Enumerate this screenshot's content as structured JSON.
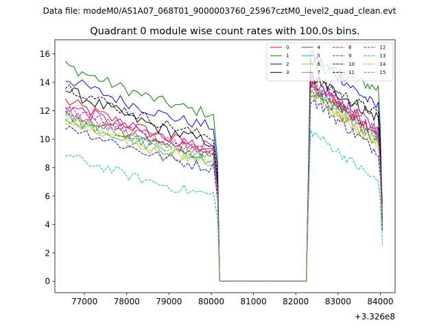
{
  "chart_data": {
    "type": "line",
    "suptitle": "Data file: modeM0/AS1A07_068T01_9000003760_25967cztM0_level2_quad_clean.evt",
    "title": "Quadrant 0 module wise count rates with 100.0s bins.",
    "xlabel": "",
    "ylabel": "",
    "x_offset_label": "+3.326e8",
    "xlim": [
      76300,
      84350
    ],
    "ylim": [
      -0.8,
      17
    ],
    "xticks": [
      77000,
      78000,
      79000,
      80000,
      81000,
      82000,
      83000,
      84000
    ],
    "yticks": [
      0,
      2,
      4,
      6,
      8,
      10,
      12,
      14,
      16
    ],
    "x_tick_labels": [
      "77000",
      "78000",
      "79000",
      "80000",
      "81000",
      "82000",
      "83000",
      "84000"
    ],
    "y_tick_labels": [
      "0",
      "2",
      "4",
      "6",
      "8",
      "10",
      "12",
      "14",
      "16"
    ],
    "segments": {
      "first_start": 76550,
      "first_end": 80050,
      "first_step": 100,
      "drop_x": 80200,
      "zero_start": 80250,
      "zero_end": 82250,
      "second_start": 82350,
      "second_end": 84050,
      "second_step": 50
    },
    "series": [
      {
        "name": "0",
        "color": "#ff0000",
        "dash": false,
        "start": 12.7,
        "end": 9.4,
        "end2": 10.6,
        "peak2": 14.0,
        "finalv": 5.5,
        "noise": 0.45
      },
      {
        "name": "1",
        "color": "#008000",
        "dash": false,
        "start": 15.2,
        "end": 11.8,
        "end2": 13.6,
        "peak2": 15.4,
        "finalv": 4.2,
        "noise": 0.4
      },
      {
        "name": "2",
        "color": "#0000ff",
        "dash": false,
        "start": 14.3,
        "end": 10.9,
        "end2": 12.3,
        "peak2": 16.0,
        "finalv": 3.9,
        "noise": 0.4
      },
      {
        "name": "3",
        "color": "#000000",
        "dash": false,
        "start": 13.5,
        "end": 9.8,
        "end2": 11.6,
        "peak2": 14.4,
        "finalv": 3.8,
        "noise": 0.45
      },
      {
        "name": "4",
        "color": "#bf00bf",
        "dash": false,
        "start": 12.4,
        "end": 9.4,
        "end2": 10.8,
        "peak2": 14.2,
        "finalv": 4.0,
        "noise": 0.45
      },
      {
        "name": "5",
        "color": "#00bfbf",
        "dash": false,
        "start": 11.6,
        "end": 8.6,
        "end2": 10.1,
        "peak2": 13.8,
        "finalv": 3.6,
        "noise": 0.4
      },
      {
        "name": "6",
        "color": "#bfbf00",
        "dash": false,
        "start": 11.2,
        "end": 8.3,
        "end2": 9.8,
        "peak2": 13.2,
        "finalv": 3.7,
        "noise": 0.4
      },
      {
        "name": "7",
        "color": "#808080",
        "dash": false,
        "start": 12.1,
        "end": 9.0,
        "end2": 10.6,
        "peak2": 13.6,
        "finalv": 3.9,
        "noise": 0.45
      },
      {
        "name": "8",
        "color": "#ff0000",
        "dash": true,
        "start": 11.9,
        "end": 9.1,
        "end2": 10.4,
        "peak2": 13.7,
        "finalv": 3.8,
        "noise": 0.4
      },
      {
        "name": "9",
        "color": "#008000",
        "dash": true,
        "start": 11.5,
        "end": 8.9,
        "end2": 10.2,
        "peak2": 13.4,
        "finalv": 3.8,
        "noise": 0.4
      },
      {
        "name": "10",
        "color": "#0000ff",
        "dash": true,
        "start": 11.0,
        "end": 8.0,
        "end2": 9.2,
        "peak2": 12.9,
        "finalv": 3.5,
        "noise": 0.4
      },
      {
        "name": "11",
        "color": "#000000",
        "dash": true,
        "start": 13.8,
        "end": 10.2,
        "end2": 11.8,
        "peak2": 14.4,
        "finalv": 4.0,
        "noise": 0.4
      },
      {
        "name": "12",
        "color": "#bf00bf",
        "dash": true,
        "start": 12.2,
        "end": 9.3,
        "end2": 10.5,
        "peak2": 13.9,
        "finalv": 3.9,
        "noise": 0.4
      },
      {
        "name": "13",
        "color": "#00bfbf",
        "dash": true,
        "start": 8.9,
        "end": 6.1,
        "end2": 7.1,
        "peak2": 10.6,
        "finalv": 2.5,
        "noise": 0.35
      },
      {
        "name": "14",
        "color": "#bfbf00",
        "dash": true,
        "start": 11.4,
        "end": 8.6,
        "end2": 9.8,
        "peak2": 13.0,
        "finalv": 3.7,
        "noise": 0.4
      },
      {
        "name": "15",
        "color": "#808080",
        "dash": true,
        "start": 11.8,
        "end": 8.8,
        "end2": 9.9,
        "peak2": 13.3,
        "finalv": 3.8,
        "noise": 0.4
      }
    ],
    "legend": {
      "location": "top-right",
      "columns": 4
    }
  }
}
